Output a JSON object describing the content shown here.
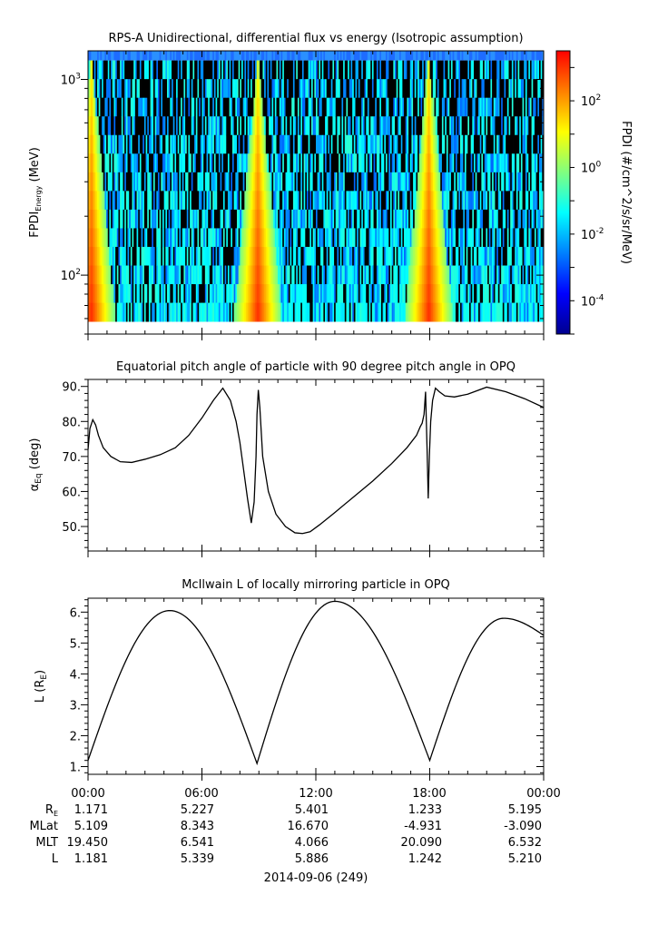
{
  "figure": {
    "date_label": "2014-09-06 (249)",
    "ephemeris": {
      "times": [
        "00:00",
        "06:00",
        "12:00",
        "18:00",
        "00:00"
      ],
      "rows": [
        {
          "label": "R",
          "label_sub": "E",
          "values": [
            "1.171",
            "5.227",
            "5.401",
            "1.233",
            "5.195"
          ]
        },
        {
          "label": "MLat",
          "label_sub": "",
          "values": [
            "5.109",
            "8.343",
            "16.670",
            "-4.931",
            "-3.090"
          ]
        },
        {
          "label": "MLT",
          "label_sub": "",
          "values": [
            "19.450",
            "6.541",
            "4.066",
            "20.090",
            "6.532"
          ]
        },
        {
          "label": "L",
          "label_sub": "",
          "values": [
            "1.181",
            "5.339",
            "5.886",
            "1.242",
            "5.210"
          ]
        }
      ]
    }
  },
  "chart_data": [
    {
      "type": "heatmap",
      "title": "RPS-A Unidirectional, differential flux vs energy (Isotropic assumption)",
      "ylabel": "FPDI",
      "ylabel_sub": "Energy",
      "ylabel_unit": " (MeV)",
      "yscale": "log",
      "ylim": [
        50,
        1400
      ],
      "ytick_labels": [
        {
          "base": "10",
          "exp": "2",
          "value": 100
        },
        {
          "base": "10",
          "exp": "3",
          "value": 1000
        }
      ],
      "xlim_hours": [
        0,
        24
      ],
      "colorbar": {
        "label": "FPDI (#/cm^2/s/sr/MeV)",
        "scale": "log",
        "range_exp": [
          -5,
          3.5
        ],
        "ticks": [
          {
            "base": "10",
            "exp": "2",
            "value": 2
          },
          {
            "base": "10",
            "exp": "0",
            "value": 0
          },
          {
            "base": "10",
            "exp": "-2",
            "value": -2
          },
          {
            "base": "10",
            "exp": "-4",
            "value": -4
          }
        ],
        "colors": [
          "#00008f",
          "#0000ff",
          "#0080ff",
          "#00ffff",
          "#80ff80",
          "#ffff00",
          "#ff8000",
          "#ff0000"
        ]
      },
      "flux_peaks_hours": [
        0.18,
        8.95,
        17.95
      ],
      "note_colors": {
        "background": "#00f0e0",
        "void": "#000000",
        "top_band": "#1e6cff"
      }
    },
    {
      "type": "line",
      "title": "Equatorial pitch angle of particle with 90 degree pitch angle in OPQ",
      "ylabel": "α",
      "ylabel_sub": "Eq",
      "ylabel_unit": " (deg)",
      "ylim": [
        43,
        92
      ],
      "yticks": [
        50,
        60,
        70,
        80,
        90
      ],
      "ytick_labels": [
        "50.",
        "60.",
        "70.",
        "80.",
        "90."
      ],
      "x_hours": [
        0,
        0.1,
        0.25,
        0.4,
        0.55,
        0.8,
        1.2,
        1.7,
        2.3,
        3.0,
        3.8,
        4.6,
        5.3,
        6.0,
        6.6,
        7.1,
        7.5,
        7.8,
        8.0,
        8.2,
        8.4,
        8.6,
        8.75,
        8.85,
        8.9,
        8.97,
        9.05,
        9.2,
        9.5,
        9.9,
        10.4,
        10.9,
        11.3,
        11.7,
        12.2,
        13.0,
        14.0,
        15.0,
        16.0,
        16.8,
        17.3,
        17.5,
        17.6,
        17.7,
        17.78,
        17.86,
        17.92,
        17.98,
        18.05,
        18.15,
        18.3,
        18.5,
        18.8,
        19.3,
        20.0,
        21.0,
        22.0,
        23.0,
        24.0
      ],
      "y_deg": [
        72.0,
        78.0,
        80.5,
        79.0,
        76.0,
        72.5,
        70.0,
        68.5,
        68.3,
        69.2,
        70.5,
        72.5,
        76.0,
        81.0,
        86.0,
        89.5,
        86.0,
        80.0,
        74.0,
        66.0,
        58.0,
        51.0,
        57.0,
        70.0,
        82.0,
        89.0,
        84.0,
        70.0,
        60.0,
        53.5,
        50.0,
        48.2,
        48.0,
        48.5,
        50.5,
        54.0,
        58.5,
        63.0,
        68.0,
        72.5,
        76.0,
        78.5,
        79.5,
        82.0,
        88.5,
        72.0,
        58.0,
        70.0,
        80.0,
        86.0,
        89.5,
        88.5,
        87.3,
        87.0,
        87.8,
        89.8,
        88.5,
        86.5,
        84.0
      ]
    },
    {
      "type": "line",
      "title": "McIlwain L of locally mirroring particle in OPQ",
      "ylabel": "L (R",
      "ylabel_sub": "E",
      "ylabel_unit": ")",
      "ylim": [
        0.75,
        6.45
      ],
      "yticks": [
        1,
        2,
        3,
        4,
        5,
        6
      ],
      "ytick_labels": [
        "1.",
        "2.",
        "3.",
        "4.",
        "5.",
        "6."
      ],
      "segments": [
        {
          "t0": 0.0,
          "t1": 8.9,
          "start": 1.2,
          "peak": 6.05,
          "end": 1.1,
          "t_peak": 4.3
        },
        {
          "t0": 8.9,
          "t1": 18.0,
          "start": 1.1,
          "peak": 6.35,
          "end": 1.2,
          "t_peak": 13.0
        },
        {
          "t0": 18.0,
          "t1": 24.0,
          "start": 1.2,
          "peak": 5.8,
          "end": 5.25,
          "t_peak": 21.9
        }
      ]
    }
  ]
}
